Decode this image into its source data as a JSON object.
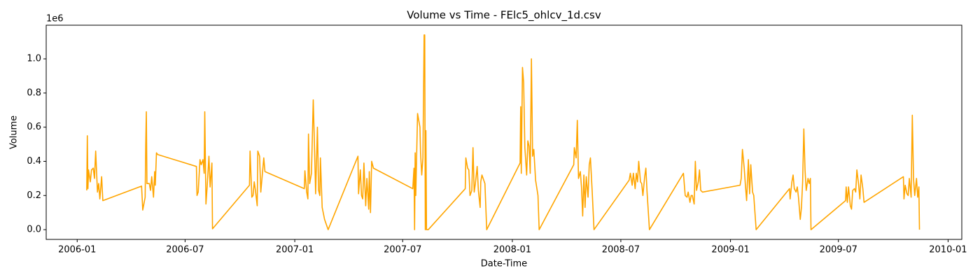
{
  "chart_data": {
    "type": "line",
    "title": "Volume vs Time - FElc5_ohlcv_1d.csv",
    "x_label": "Date-Time",
    "y_label": "Volume",
    "y_offset_label": "1e6",
    "color": "#ffa500",
    "xlim": [
      "2005-11-10",
      "2010-01-24"
    ],
    "ylim": [
      -57000,
      1197000
    ],
    "xticks": [
      {
        "value": "2006-01-01",
        "label": "2006-01"
      },
      {
        "value": "2006-07-01",
        "label": "2006-07"
      },
      {
        "value": "2007-01-01",
        "label": "2007-01"
      },
      {
        "value": "2007-07-01",
        "label": "2007-07"
      },
      {
        "value": "2008-01-01",
        "label": "2008-01"
      },
      {
        "value": "2008-07-01",
        "label": "2008-07"
      },
      {
        "value": "2009-01-01",
        "label": "2009-01"
      },
      {
        "value": "2009-07-01",
        "label": "2009-07"
      },
      {
        "value": "2010-01-01",
        "label": "2010-01"
      }
    ],
    "yticks": [
      {
        "value": 0,
        "label": "0.0"
      },
      {
        "value": 200000,
        "label": "0.2"
      },
      {
        "value": 400000,
        "label": "0.4"
      },
      {
        "value": 600000,
        "label": "0.6"
      },
      {
        "value": 800000,
        "label": "0.8"
      },
      {
        "value": 1000000,
        "label": "1.0"
      }
    ],
    "x": [
      "2006-01-17",
      "2006-01-18",
      "2006-01-19",
      "2006-01-20",
      "2006-01-23",
      "2006-01-25",
      "2006-01-28",
      "2006-01-30",
      "2006-02-01",
      "2006-02-04",
      "2006-02-06",
      "2006-02-08",
      "2006-02-11",
      "2006-02-13",
      "2006-04-19",
      "2006-04-21",
      "2006-04-25",
      "2006-04-26",
      "2006-04-27",
      "2006-04-28",
      "2006-05-02",
      "2006-05-04",
      "2006-05-06",
      "2006-05-09",
      "2006-05-11",
      "2006-05-12",
      "2006-05-14",
      "2006-05-16",
      "2006-07-20",
      "2006-07-21",
      "2006-07-23",
      "2006-07-26",
      "2006-07-28",
      "2006-07-31",
      "2006-08-02",
      "2006-08-03",
      "2006-08-05",
      "2006-08-07",
      "2006-08-10",
      "2006-08-12",
      "2006-08-15",
      "2006-08-16",
      "2006-10-17",
      "2006-10-18",
      "2006-10-21",
      "2006-10-23",
      "2006-10-25",
      "2006-10-27",
      "2006-10-30",
      "2006-10-31",
      "2006-11-03",
      "2006-11-05",
      "2006-11-07",
      "2006-11-10",
      "2006-11-12",
      "2007-01-17",
      "2007-01-18",
      "2007-01-21",
      "2007-01-23",
      "2007-01-24",
      "2007-01-26",
      "2007-01-29",
      "2007-02-01",
      "2007-02-03",
      "2007-02-05",
      "2007-02-08",
      "2007-02-10",
      "2007-02-12",
      "2007-02-13",
      "2007-02-16",
      "2007-02-20",
      "2007-02-26",
      "2007-04-17",
      "2007-04-18",
      "2007-04-21",
      "2007-04-23",
      "2007-04-25",
      "2007-04-27",
      "2007-04-30",
      "2007-05-02",
      "2007-05-05",
      "2007-05-06",
      "2007-05-08",
      "2007-05-10",
      "2007-05-13",
      "2007-07-18",
      "2007-07-19",
      "2007-07-20",
      "2007-07-21",
      "2007-07-22",
      "2007-07-23",
      "2007-07-26",
      "2007-07-30",
      "2007-07-31",
      "2007-08-02",
      "2007-08-04",
      "2007-08-06",
      "2007-08-07",
      "2007-08-08",
      "2007-08-09",
      "2007-08-10",
      "2007-08-13",
      "2007-10-14",
      "2007-10-15",
      "2007-10-18",
      "2007-10-20",
      "2007-10-22",
      "2007-10-25",
      "2007-10-27",
      "2007-10-29",
      "2007-10-31",
      "2007-11-03",
      "2007-11-05",
      "2007-11-08",
      "2007-11-09",
      "2007-11-11",
      "2007-11-16",
      "2007-11-19",
      "2008-01-14",
      "2008-01-15",
      "2008-01-16",
      "2008-01-18",
      "2008-01-20",
      "2008-01-22",
      "2008-01-25",
      "2008-01-27",
      "2008-01-29",
      "2008-01-31",
      "2008-02-02",
      "2008-02-04",
      "2008-02-06",
      "2008-02-09",
      "2008-02-13",
      "2008-02-15",
      "2008-04-13",
      "2008-04-14",
      "2008-04-17",
      "2008-04-19",
      "2008-04-21",
      "2008-04-24",
      "2008-04-26",
      "2008-04-28",
      "2008-04-30",
      "2008-05-02",
      "2008-05-04",
      "2008-05-07",
      "2008-05-09",
      "2008-05-11",
      "2008-05-14",
      "2008-05-17",
      "2008-07-15",
      "2008-07-17",
      "2008-07-20",
      "2008-07-22",
      "2008-07-25",
      "2008-07-27",
      "2008-07-29",
      "2008-07-31",
      "2008-08-03",
      "2008-08-05",
      "2008-08-07",
      "2008-08-10",
      "2008-08-12",
      "2008-08-14",
      "2008-08-18",
      "2008-10-14",
      "2008-10-17",
      "2008-10-20",
      "2008-10-22",
      "2008-10-25",
      "2008-10-27",
      "2008-10-29",
      "2008-11-01",
      "2008-11-03",
      "2008-11-05",
      "2008-11-08",
      "2008-11-10",
      "2008-11-12",
      "2008-11-15",
      "2009-01-17",
      "2009-01-19",
      "2009-01-21",
      "2009-01-24",
      "2009-01-26",
      "2009-01-28",
      "2009-01-31",
      "2009-02-02",
      "2009-02-04",
      "2009-02-07",
      "2009-02-09",
      "2009-02-13",
      "2009-04-10",
      "2009-04-11",
      "2009-04-14",
      "2009-04-16",
      "2009-04-18",
      "2009-04-21",
      "2009-04-23",
      "2009-04-25",
      "2009-04-28",
      "2009-04-30",
      "2009-05-02",
      "2009-05-04",
      "2009-05-06",
      "2009-05-08",
      "2009-05-11",
      "2009-05-13",
      "2009-05-15",
      "2009-05-16",
      "2009-07-13",
      "2009-07-14",
      "2009-07-16",
      "2009-07-18",
      "2009-07-21",
      "2009-07-23",
      "2009-07-25",
      "2009-07-28",
      "2009-07-30",
      "2009-08-01",
      "2009-08-04",
      "2009-08-06",
      "2009-08-08",
      "2009-08-11",
      "2009-08-13",
      "2009-10-18",
      "2009-10-19",
      "2009-10-21",
      "2009-10-24",
      "2009-10-26",
      "2009-10-28",
      "2009-10-31",
      "2009-11-02",
      "2009-11-04",
      "2009-11-06",
      "2009-11-09",
      "2009-11-11",
      "2009-11-13",
      "2009-11-14"
    ],
    "values": [
      230000,
      550000,
      240000,
      350000,
      280000,
      350000,
      360000,
      300000,
      460000,
      220000,
      270000,
      180000,
      310000,
      170000,
      255000,
      115000,
      190000,
      500000,
      690000,
      270000,
      270000,
      230000,
      310000,
      190000,
      340000,
      260000,
      450000,
      440000,
      370000,
      200000,
      220000,
      410000,
      380000,
      410000,
      330000,
      690000,
      150000,
      250000,
      430000,
      250000,
      390000,
      5000,
      260000,
      460000,
      190000,
      200000,
      280000,
      230000,
      140000,
      460000,
      430000,
      220000,
      300000,
      420000,
      340000,
      240000,
      345000,
      220000,
      180000,
      560000,
      270000,
      330000,
      760000,
      500000,
      210000,
      600000,
      230000,
      200000,
      420000,
      130000,
      60000,
      0,
      430000,
      210000,
      350000,
      200000,
      180000,
      390000,
      140000,
      300000,
      120000,
      340000,
      100000,
      400000,
      360000,
      240000,
      300000,
      360000,
      0,
      450000,
      200000,
      680000,
      600000,
      450000,
      320000,
      420000,
      1140000,
      1140000,
      0,
      580000,
      0,
      0,
      240000,
      420000,
      360000,
      350000,
      200000,
      230000,
      480000,
      220000,
      270000,
      370000,
      230000,
      130000,
      280000,
      320000,
      270000,
      0,
      390000,
      720000,
      330000,
      950000,
      860000,
      480000,
      320000,
      520000,
      490000,
      330000,
      1000000,
      430000,
      470000,
      290000,
      200000,
      0,
      380000,
      480000,
      420000,
      640000,
      300000,
      340000,
      250000,
      80000,
      320000,
      130000,
      310000,
      190000,
      380000,
      420000,
      220000,
      0,
      290000,
      330000,
      260000,
      330000,
      240000,
      330000,
      280000,
      400000,
      280000,
      270000,
      200000,
      310000,
      360000,
      220000,
      0,
      330000,
      200000,
      190000,
      220000,
      160000,
      200000,
      200000,
      150000,
      400000,
      230000,
      280000,
      350000,
      230000,
      220000,
      260000,
      300000,
      470000,
      360000,
      260000,
      170000,
      410000,
      210000,
      380000,
      220000,
      200000,
      0,
      240000,
      180000,
      280000,
      320000,
      240000,
      220000,
      250000,
      190000,
      60000,
      130000,
      280000,
      590000,
      350000,
      230000,
      300000,
      270000,
      300000,
      0,
      170000,
      250000,
      160000,
      250000,
      140000,
      120000,
      230000,
      240000,
      220000,
      350000,
      260000,
      180000,
      320000,
      240000,
      160000,
      310000,
      180000,
      260000,
      210000,
      200000,
      300000,
      190000,
      670000,
      300000,
      200000,
      300000,
      190000,
      250000,
      0
    ]
  }
}
